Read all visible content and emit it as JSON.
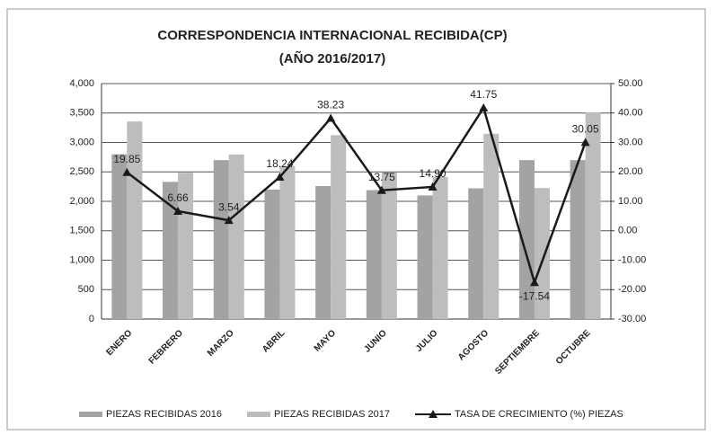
{
  "chart_data": {
    "type": "bar_line",
    "title": "CORRESPONDENCIA INTERNACIONAL RECIBIDA(CP)",
    "subtitle": "(AÑO 2016/2017)",
    "categories": [
      "ENERO",
      "FEBRERO",
      "MARZO",
      "ABRIL",
      "MAYO",
      "JUNIO",
      "JULIO",
      "AGOSTO",
      "SEPTIEMBRE",
      "OCTUBRE"
    ],
    "series": [
      {
        "name": "PIEZAS RECIBIDAS 2016",
        "type": "bar",
        "color": "#a3a3a3",
        "values": [
          2800,
          2330,
          2700,
          2200,
          2260,
          2190,
          2100,
          2220,
          2700,
          2700
        ]
      },
      {
        "name": "PIEZAS RECIBIDAS 2017",
        "type": "bar",
        "color": "#bdbdbd",
        "values": [
          3356,
          2485,
          2796,
          2601,
          3124,
          2491,
          2413,
          3147,
          2226,
          3511
        ]
      },
      {
        "name": "TASA DE CRECIMIENTO  (%) PIEZAS",
        "type": "line",
        "axis": "y2",
        "color": "#1a1a1a",
        "values": [
          19.85,
          6.66,
          3.54,
          18.24,
          38.23,
          13.75,
          14.9,
          41.75,
          -17.54,
          30.05
        ],
        "value_labels": [
          "19.85",
          "6.66",
          "3.54",
          "18.24",
          "38.23",
          "13.75",
          "14.90",
          "41.75",
          "-17.54",
          "30.05"
        ]
      }
    ],
    "ylim": [
      0,
      4000
    ],
    "yticks": [
      0,
      {
        "value": 500,
        "label": "500"
      },
      {
        "value": 1000,
        "label": "1,000"
      },
      {
        "value": 1500,
        "label": "1,500"
      },
      {
        "value": 2000,
        "label": "2,000"
      },
      {
        "value": 2500,
        "label": "2,500"
      },
      {
        "value": 3000,
        "label": "3,000"
      },
      {
        "value": 3500,
        "label": "3,500"
      },
      {
        "value": 4000,
        "label": "4,000"
      }
    ],
    "y2lim": [
      -30,
      50
    ],
    "y2ticks": [
      {
        "value": -30,
        "label": "-30.00"
      },
      {
        "value": -20,
        "label": "-20.00"
      },
      {
        "value": -10,
        "label": "-10.00"
      },
      {
        "value": 0,
        "label": "0.00"
      },
      {
        "value": 10,
        "label": "10.00"
      },
      {
        "value": 20,
        "label": "20.00"
      },
      {
        "value": 30,
        "label": "30.00"
      },
      {
        "value": 40,
        "label": "40.00"
      },
      {
        "value": 50,
        "label": "50.00"
      }
    ],
    "grid": true,
    "legend": "bottom"
  }
}
